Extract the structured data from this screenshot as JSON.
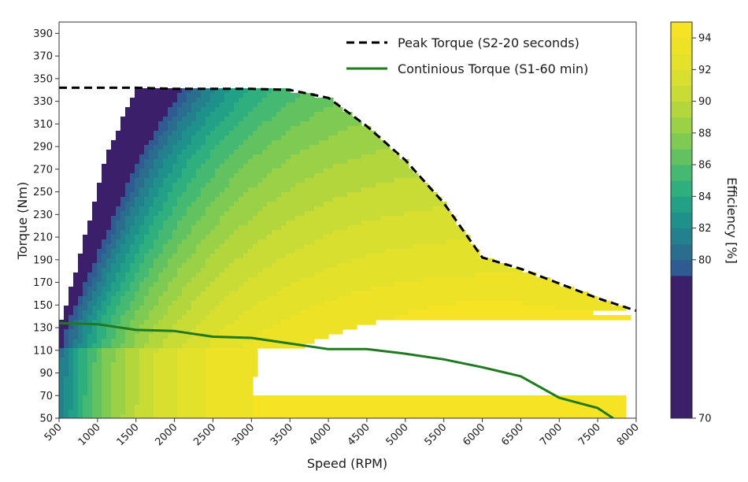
{
  "chart_data": {
    "type": "contour",
    "xlabel": "Speed (RPM)",
    "ylabel": "Torque (Nm)",
    "colorbar_label": "Efficiency [%]",
    "xlim": [
      500,
      8000
    ],
    "ylim": [
      50,
      400
    ],
    "x_ticks": [
      500,
      1000,
      1500,
      2000,
      2500,
      3000,
      3500,
      4000,
      4500,
      5000,
      5500,
      6000,
      6500,
      7000,
      7500,
      8000
    ],
    "y_ticks": [
      50,
      70,
      90,
      110,
      130,
      150,
      170,
      190,
      210,
      230,
      250,
      270,
      290,
      310,
      330,
      350,
      370,
      390
    ],
    "colorbar": {
      "ticks": [
        70,
        80,
        82,
        84,
        86,
        88,
        90,
        92,
        94
      ],
      "levels": [
        70,
        79,
        80,
        81,
        82,
        83,
        84,
        85,
        86,
        87,
        88,
        89,
        90,
        91,
        92,
        93,
        94,
        95
      ],
      "colors": [
        "#3b1f6a",
        "#2e5b92",
        "#2b6d8d",
        "#22818c",
        "#1f918b",
        "#22a187",
        "#2fae7e",
        "#45b971",
        "#62c260",
        "#7fca52",
        "#9bd146",
        "#b4d63d",
        "#c9dc36",
        "#d9df2f",
        "#e4e12a",
        "#eee226",
        "#f6e323"
      ]
    },
    "legend_position": "top-right",
    "series": [
      {
        "name": "Peak Torque (S2-20 seconds)",
        "style": "dashed",
        "color": "#000000",
        "x": [
          500,
          1000,
          1500,
          2000,
          2500,
          3000,
          3500,
          4000,
          4500,
          5000,
          5500,
          6000,
          6500,
          7000,
          7500,
          8000
        ],
        "y": [
          342,
          342,
          342,
          341,
          341,
          341,
          340,
          333,
          308,
          278,
          240,
          192,
          182,
          169,
          156,
          145
        ]
      },
      {
        "name": "Continious Torque (S1-60 min)",
        "style": "solid",
        "color": "#1f7a1f",
        "x": [
          500,
          1000,
          1500,
          2000,
          2500,
          3000,
          3500,
          4000,
          4500,
          5000,
          5500,
          6000,
          6500,
          7000,
          7500,
          7700
        ],
        "y": [
          134,
          133,
          128,
          127,
          122,
          121,
          116,
          111,
          111,
          107,
          102,
          95,
          87,
          68,
          59,
          50
        ]
      }
    ]
  }
}
